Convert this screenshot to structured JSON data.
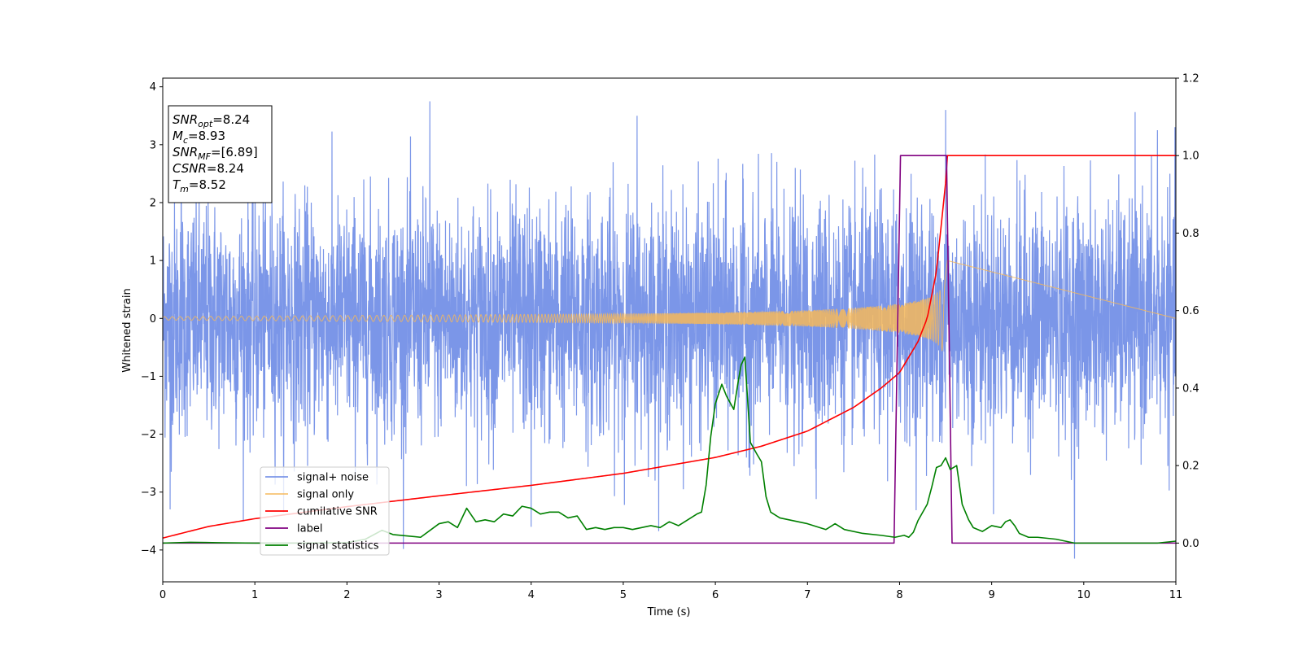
{
  "chart_data": {
    "type": "line",
    "xlabel": "Time (s)",
    "ylabel": "Whitened strain",
    "xlim": [
      0,
      11
    ],
    "ylim": [
      -4.55,
      4.15
    ],
    "y2lim": [
      -0.1,
      1.2
    ],
    "x_ticks": [
      "0",
      "1",
      "2",
      "3",
      "4",
      "5",
      "6",
      "7",
      "8",
      "9",
      "10",
      "11"
    ],
    "y_ticks": [
      "4",
      "3",
      "2",
      "1",
      "0",
      "−1",
      "−2",
      "−3",
      "−4"
    ],
    "y2_ticks": [
      "1.2",
      "1.0",
      "0.8",
      "0.6",
      "0.4",
      "0.2",
      "0.0"
    ],
    "grid": false,
    "legend_position": "lower-left",
    "annotation_box": [
      {
        "main": "SNR",
        "sub": "opt",
        "value": "=8.24"
      },
      {
        "main": "M",
        "sub": "c",
        "value": "=8.93"
      },
      {
        "main": "SNR",
        "sub": "MF",
        "value": "=[6.89]"
      },
      {
        "main": "CSNR",
        "sub": "",
        "value": "=8.24"
      },
      {
        "main": "T",
        "sub": "m",
        "value": "=8.52"
      }
    ],
    "series": [
      {
        "name": "signal+ noise",
        "axis": "left",
        "color": "#7b96e8",
        "description": "noise dominated strain",
        "amplitude_envelope": 1.0,
        "x_range": [
          0,
          11
        ],
        "peaks": [
          {
            "x": 0.2,
            "y": 3.4
          },
          {
            "x": 2.9,
            "y": 3.75
          },
          {
            "x": 5.15,
            "y": 3.5
          },
          {
            "x": 8.5,
            "y": 3.6
          },
          {
            "x": 9.9,
            "y": -4.15
          },
          {
            "x": 0.08,
            "y": -3.3
          },
          {
            "x": 4.0,
            "y": -3.6
          },
          {
            "x": 10.8,
            "y": 3.25
          }
        ]
      },
      {
        "name": "signal only",
        "axis": "left",
        "color": "#f6b85a",
        "description": "chirp with growing amplitude ending at 8.52 s",
        "x": [
          0,
          1,
          2,
          3,
          4,
          5,
          6,
          7,
          7.5,
          8,
          8.2,
          8.35,
          8.45,
          8.5,
          8.52
        ],
        "amplitude": [
          0.03,
          0.04,
          0.05,
          0.06,
          0.07,
          0.08,
          0.1,
          0.14,
          0.18,
          0.25,
          0.31,
          0.38,
          0.5,
          0.75,
          1.0
        ]
      },
      {
        "name": "cumilative SNR",
        "axis": "right",
        "color": "#ff0000",
        "x": [
          0,
          0.5,
          1,
          2,
          3,
          4,
          5,
          6,
          6.5,
          7,
          7.5,
          7.8,
          8,
          8.2,
          8.3,
          8.4,
          8.5,
          8.52,
          11
        ],
        "y": [
          0.013,
          0.043,
          0.063,
          0.094,
          0.122,
          0.149,
          0.18,
          0.221,
          0.25,
          0.289,
          0.35,
          0.4,
          0.44,
          0.52,
          0.58,
          0.7,
          0.93,
          1.0,
          1.0
        ]
      },
      {
        "name": "label",
        "axis": "right",
        "color": "#800080",
        "x": [
          0,
          7.94,
          8.01,
          8.51,
          8.57,
          11
        ],
        "y": [
          0,
          0,
          1,
          1,
          0,
          0
        ]
      },
      {
        "name": "signal statistics",
        "axis": "right",
        "color": "#008000",
        "x": [
          0,
          0.3,
          0.6,
          1.0,
          1.5,
          2.0,
          2.2,
          2.38,
          2.5,
          2.8,
          3.0,
          3.1,
          3.2,
          3.3,
          3.4,
          3.5,
          3.6,
          3.7,
          3.8,
          3.9,
          4.0,
          4.1,
          4.2,
          4.3,
          4.4,
          4.5,
          4.6,
          4.7,
          4.8,
          4.9,
          5.0,
          5.1,
          5.2,
          5.3,
          5.4,
          5.5,
          5.6,
          5.7,
          5.8,
          5.85,
          5.9,
          5.95,
          6.0,
          6.07,
          6.12,
          6.2,
          6.25,
          6.28,
          6.32,
          6.38,
          6.45,
          6.5,
          6.55,
          6.6,
          6.7,
          6.8,
          7.0,
          7.2,
          7.3,
          7.4,
          7.6,
          7.8,
          7.95,
          8.05,
          8.1,
          8.15,
          8.2,
          8.3,
          8.35,
          8.4,
          8.45,
          8.5,
          8.55,
          8.62,
          8.68,
          8.75,
          8.8,
          8.9,
          9.0,
          9.1,
          9.15,
          9.2,
          9.25,
          9.3,
          9.4,
          9.5,
          9.7,
          9.9,
          10.2,
          10.5,
          10.8,
          11.0
        ],
        "y": [
          0,
          0.002,
          0.001,
          0,
          0,
          0.001,
          0.01,
          0.033,
          0.022,
          0.015,
          0.05,
          0.055,
          0.04,
          0.09,
          0.055,
          0.06,
          0.055,
          0.075,
          0.07,
          0.095,
          0.09,
          0.075,
          0.08,
          0.08,
          0.065,
          0.07,
          0.035,
          0.04,
          0.035,
          0.04,
          0.04,
          0.035,
          0.04,
          0.045,
          0.04,
          0.055,
          0.045,
          0.06,
          0.075,
          0.08,
          0.15,
          0.275,
          0.36,
          0.41,
          0.38,
          0.345,
          0.42,
          0.46,
          0.48,
          0.26,
          0.23,
          0.21,
          0.12,
          0.08,
          0.065,
          0.06,
          0.05,
          0.035,
          0.05,
          0.035,
          0.025,
          0.02,
          0.015,
          0.02,
          0.015,
          0.028,
          0.058,
          0.1,
          0.145,
          0.195,
          0.2,
          0.22,
          0.19,
          0.2,
          0.1,
          0.06,
          0.04,
          0.03,
          0.045,
          0.04,
          0.055,
          0.06,
          0.045,
          0.025,
          0.015,
          0.015,
          0.01,
          0,
          0,
          0,
          0,
          0.005
        ]
      }
    ]
  }
}
